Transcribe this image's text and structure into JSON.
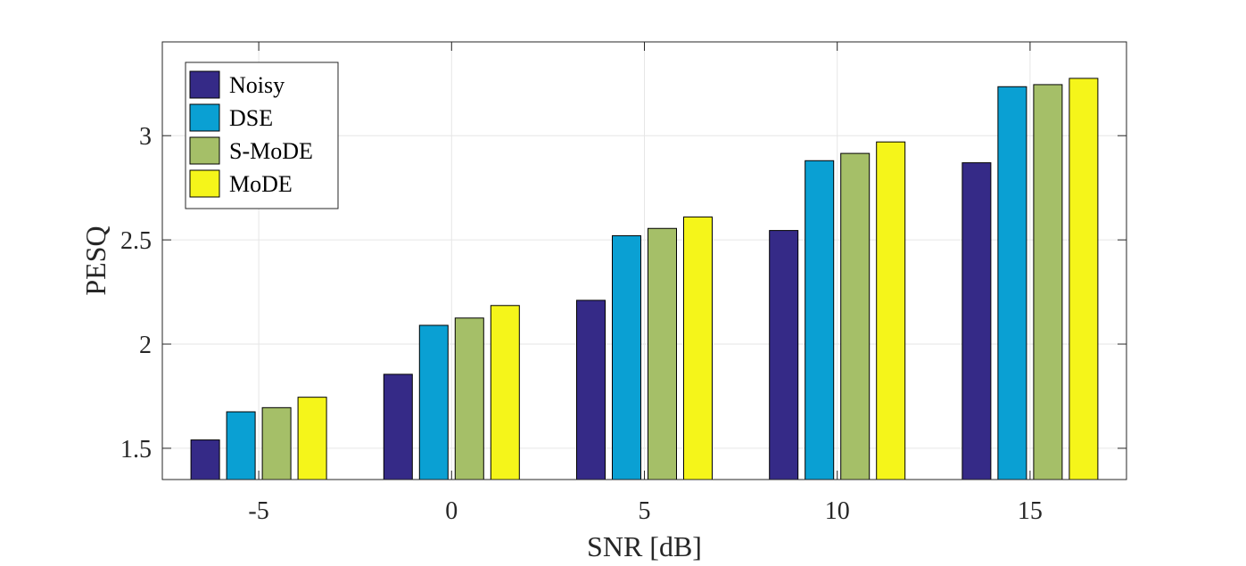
{
  "chart_data": {
    "type": "bar",
    "categories": [
      "-5",
      "0",
      "5",
      "10",
      "15"
    ],
    "series": [
      {
        "name": "Noisy",
        "color": "#352a87",
        "values": [
          1.54,
          1.855,
          2.21,
          2.545,
          2.87
        ]
      },
      {
        "name": "DSE",
        "color": "#0aa0d3",
        "values": [
          1.675,
          2.09,
          2.52,
          2.88,
          3.235
        ]
      },
      {
        "name": "S-MoDE",
        "color": "#a5bf68",
        "values": [
          1.695,
          2.125,
          2.555,
          2.915,
          3.245
        ]
      },
      {
        "name": "MoDE",
        "color": "#f5f51a",
        "values": [
          1.745,
          2.185,
          2.61,
          2.97,
          3.275
        ]
      }
    ],
    "xlabel": "SNR [dB]",
    "ylabel": "PESQ",
    "ylim": [
      1.35,
      3.45
    ],
    "yticks": [
      "1.5",
      "2",
      "2.5",
      "3"
    ],
    "grid": true,
    "legend_position": "top-left"
  }
}
